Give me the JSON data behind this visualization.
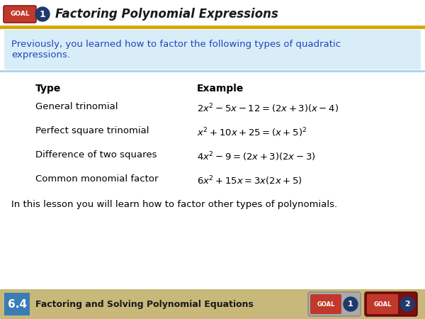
{
  "title": "Factoring Polynomial Expressions",
  "goal_label": "GOAL",
  "goal_number": "1",
  "header_bg": "#ffffff",
  "gold_line_color": "#D4A800",
  "blue_line_color": "#A8D4E8",
  "intro_text": "Previously, you learned how to factor the following types of quadratic\nexpressions.",
  "intro_bg": "#D8EDF8",
  "type_header": "Type",
  "example_header": "Example",
  "rows": [
    {
      "type": "General trinomial",
      "example": "$2x^2 - 5x - 12 = (2x +3)(x - 4)$"
    },
    {
      "type": "Perfect square trinomial",
      "example": "$x^2 + 10x + 25 = (x + 5)^2$"
    },
    {
      "type": "Difference of two squares",
      "example": "$4x^2 - 9 = (2x + 3)(2x - 3)$"
    },
    {
      "type": "Common monomial factor",
      "example": "$6x^2 + 15x = 3x(2x + 5)$"
    }
  ],
  "footer_text": "In this lesson you will learn how to factor other types of polynomials.",
  "bottom_label": "6.4",
  "bottom_title": "Factoring and Solving Polynomial Equations",
  "bottom_bg": "#C8B87A",
  "blue_box_bg": "#3A7DB5",
  "red_goal_bg": "#C0392B",
  "dark_blue_goal_bg": "#1F3A6E",
  "goal1_bg": "#AAAAAA",
  "goal2_bg": "#7A1010"
}
